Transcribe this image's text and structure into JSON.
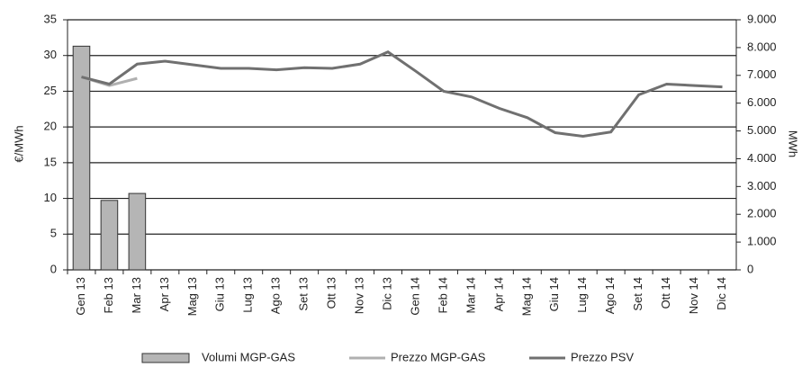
{
  "chart_data": {
    "type": "bar-line",
    "y_label": "€/MWh",
    "y2_label": "MWh",
    "categories": [
      "Gen 13",
      "Feb 13",
      "Mar 13",
      "Apr 13",
      "Mag 13",
      "Giu 13",
      "Lug 13",
      "Ago 13",
      "Set 13",
      "Ott 13",
      "Nov 13",
      "Dic 13",
      "Gen 14",
      "Feb 14",
      "Mar 14",
      "Apr 14",
      "Mag 14",
      "Giu 14",
      "Lug 14",
      "Ago 14",
      "Set 14",
      "Ott 14",
      "Nov 14",
      "Dic 14"
    ],
    "series": [
      {
        "name": "Volumi MGP-GAS",
        "type": "bar",
        "axis": "y2",
        "color": "#b5b5b5",
        "values": [
          8050,
          2500,
          2750,
          null,
          null,
          null,
          null,
          null,
          null,
          null,
          null,
          null,
          null,
          null,
          null,
          null,
          null,
          null,
          null,
          null,
          null,
          null,
          null,
          null
        ]
      },
      {
        "name": "Prezzo MGP-GAS",
        "type": "line",
        "color": "#b0b0b0",
        "values": [
          27,
          25.8,
          26.8,
          null,
          null,
          null,
          null,
          null,
          null,
          null,
          null,
          null,
          null,
          null,
          null,
          null,
          null,
          null,
          null,
          null,
          null,
          null,
          null,
          null
        ]
      },
      {
        "name": "Prezzo PSV",
        "type": "line",
        "color": "#707070",
        "values": [
          27,
          26,
          28.8,
          29.2,
          28.7,
          28.2,
          28.2,
          28,
          28.3,
          28.2,
          28.8,
          30.5,
          27.8,
          25,
          24.2,
          22.6,
          21.3,
          19.2,
          18.7,
          19.3,
          24.5,
          26,
          25.8,
          25.6
        ]
      }
    ],
    "ylim": [
      0,
      35
    ],
    "yticks": [
      0,
      5,
      10,
      15,
      20,
      25,
      30,
      35
    ],
    "y2lim": [
      0,
      9000
    ],
    "y2ticks": [
      0,
      {
        "value": 1000,
        "label": "1.000"
      },
      {
        "value": 2000,
        "label": "2.000"
      },
      {
        "value": 3000,
        "label": "3.000"
      },
      {
        "value": 4000,
        "label": "4.000"
      },
      {
        "value": 5000,
        "label": "5.000"
      },
      {
        "value": 6000,
        "label": "6.000"
      },
      {
        "value": 7000,
        "label": "7.000"
      },
      {
        "value": 8000,
        "label": "8.000"
      },
      {
        "value": 9000,
        "label": "9.000"
      }
    ],
    "grid": true
  }
}
